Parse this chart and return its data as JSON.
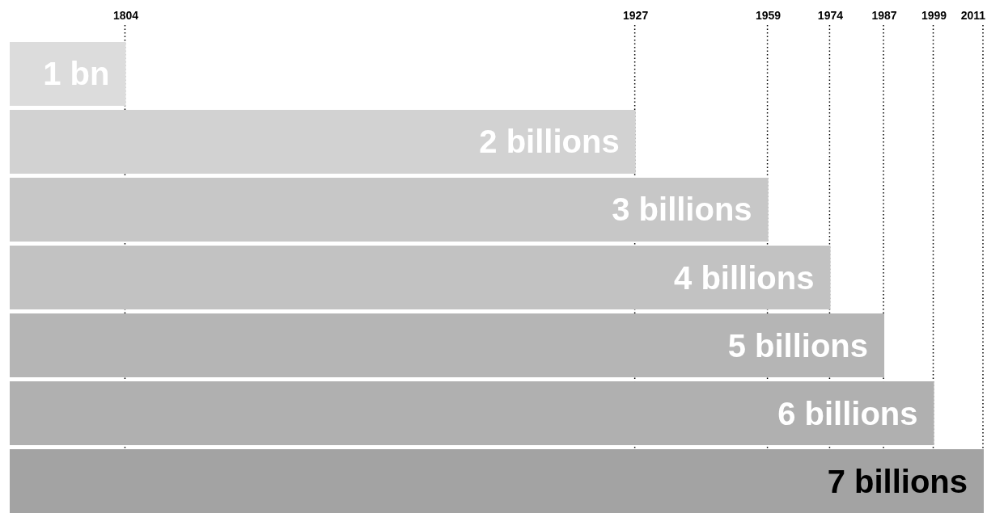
{
  "chart_data": {
    "type": "bar",
    "orientation": "horizontal",
    "categories": [
      "1 bn",
      "2 billions",
      "3 billions",
      "4 billions",
      "5 billions",
      "6 billions",
      "7 billions"
    ],
    "values": [
      1804,
      1927,
      1959,
      1974,
      1987,
      1999,
      2011
    ],
    "colors": [
      "#dcdcdc",
      "#d2d2d2",
      "#c7c7c7",
      "#c2c2c2",
      "#b5b5b5",
      "#b0b0b0",
      "#a3a3a3"
    ],
    "xlim": [
      1776,
      2011
    ],
    "xticks": [
      1804,
      1927,
      1959,
      1974,
      1987,
      1999,
      2011
    ],
    "grid": "x"
  }
}
